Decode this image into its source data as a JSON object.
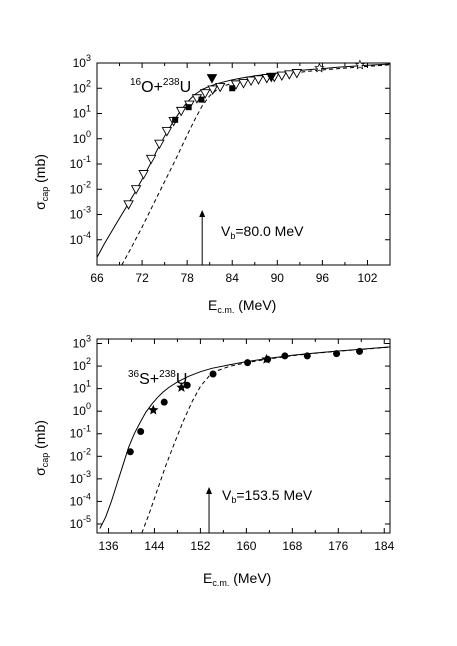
{
  "chart_data": [
    {
      "type": "scatter",
      "title": "",
      "reaction": {
        "pre1": "16",
        "el1": "O+",
        "pre2": "238",
        "el2": "U"
      },
      "xlabel": {
        "main": "E",
        "sub": "c.m.",
        "unit": "(MeV)"
      },
      "ylabel": {
        "main": "σ",
        "sub": "cap",
        "unit": "(mb)"
      },
      "xlim": [
        66,
        105
      ],
      "ylim_log10": [
        -5,
        3
      ],
      "log_y": true,
      "x_ticks": [
        "66",
        "72",
        "78",
        "84",
        "90",
        "96",
        "102"
      ],
      "y_tick_exponents": [
        "3",
        "2",
        "1",
        "0",
        "-1",
        "-2",
        "-3",
        "-4"
      ],
      "barrier": {
        "label_main": "V",
        "label_sub": "b",
        "label_value": "=80.0 MeV",
        "x": 80.0
      },
      "series": [
        {
          "marker": "triangle-down-open",
          "x": [
            70.2,
            71.2,
            72.2,
            73.2,
            74.3,
            75.3,
            76.2,
            77.2,
            78.3,
            79.3,
            80.4,
            81.4,
            82.4,
            84.5,
            85.5,
            86.5,
            87.5,
            88.6,
            89.6,
            90.6,
            91.6,
            92.6
          ],
          "y": [
            -2.6,
            -2.0,
            -1.4,
            -0.8,
            -0.2,
            0.3,
            0.7,
            1.1,
            1.35,
            1.6,
            1.8,
            1.95,
            2.05,
            2.15,
            2.2,
            2.3,
            2.35,
            2.4,
            2.45,
            2.5,
            2.55,
            2.6
          ]
        },
        {
          "marker": "square-filled",
          "x": [
            76.4,
            78.2,
            79.9,
            84.0
          ],
          "y": [
            0.75,
            1.25,
            1.55,
            2.0
          ]
        },
        {
          "marker": "triangle-down-filled",
          "x": [
            81.3,
            89.2
          ],
          "y": [
            2.4,
            2.45
          ]
        },
        {
          "marker": "star-open",
          "x": [
            95.6,
            101.0
          ],
          "y": [
            2.8,
            2.92
          ]
        },
        {
          "name": "",
          "style": "solid",
          "x": [
            66.0,
            67.0,
            68.0,
            69.0,
            70.0,
            71.0,
            72.0,
            73.0,
            74.0,
            75.0,
            76.0,
            77.0,
            78.0,
            79.0,
            80.0,
            81.0,
            82.0,
            83.0,
            84.0,
            85.0,
            86.0,
            87.0,
            88.0,
            90.0,
            92.0,
            94.0,
            96.0,
            98.0,
            100.0,
            102.0,
            105.0
          ],
          "y": [
            -4.7,
            -4.15,
            -3.65,
            -3.15,
            -2.65,
            -2.15,
            -1.6,
            -1.05,
            -0.45,
            0.1,
            0.6,
            1.05,
            1.45,
            1.75,
            1.95,
            2.08,
            2.18,
            2.26,
            2.33,
            2.39,
            2.44,
            2.49,
            2.53,
            2.6,
            2.67,
            2.73,
            2.78,
            2.83,
            2.87,
            2.91,
            2.96
          ]
        },
        {
          "name": "",
          "style": "dashed",
          "x": [
            69.3,
            70.5,
            72.0,
            73.5,
            75.0,
            76.5,
            78.0,
            79.0,
            80.0,
            81.0,
            82.0,
            83.0,
            84.0,
            86.0,
            88.0,
            90.0,
            92.0,
            95.0,
            100.0,
            105.0
          ],
          "y": [
            -5.0,
            -4.35,
            -3.5,
            -2.6,
            -1.7,
            -0.8,
            0.15,
            0.75,
            1.3,
            1.7,
            1.95,
            2.1,
            2.2,
            2.35,
            2.45,
            2.53,
            2.6,
            2.7,
            2.82,
            2.93
          ]
        }
      ]
    },
    {
      "type": "scatter",
      "title": "",
      "reaction": {
        "pre1": "36",
        "el1": "S+",
        "pre2": "238",
        "el2": "U"
      },
      "xlabel": {
        "main": "E",
        "sub": "c.m.",
        "unit": "(MeV)"
      },
      "ylabel": {
        "main": "σ",
        "sub": "cap",
        "unit": "(mb)"
      },
      "xlim": [
        134,
        185
      ],
      "ylim_log10": [
        -5.4,
        3.2
      ],
      "log_y": true,
      "x_ticks": [
        "136",
        "144",
        "152",
        "160",
        "168",
        "176",
        "184"
      ],
      "y_tick_exponents": [
        "3",
        "2",
        "1",
        "0",
        "-1",
        "-2",
        "-3",
        "-4",
        "-5"
      ],
      "barrier": {
        "label_main": "V",
        "label_sub": "b",
        "label_value": "=153.5 MeV",
        "x": 153.5
      },
      "series": [
        {
          "marker": "circle-filled",
          "x": [
            139.8,
            141.6,
            145.7,
            149.7,
            154.2,
            160.2,
            163.7,
            166.7,
            170.6,
            175.7,
            179.7
          ],
          "y": [
            -1.8,
            -0.9,
            0.4,
            1.15,
            1.65,
            2.15,
            2.3,
            2.45,
            2.45,
            2.55,
            2.65
          ]
        },
        {
          "marker": "star-filled",
          "x": [
            143.8,
            148.7,
            163.5
          ],
          "y": [
            0.05,
            1.05,
            2.3
          ]
        },
        {
          "name": "",
          "style": "solid",
          "x": [
            134.5,
            135.5,
            136.5,
            137.5,
            138.5,
            139.5,
            140.5,
            141.5,
            142.5,
            143.5,
            144.5,
            145.5,
            146.5,
            148.0,
            150.0,
            152.0,
            154.0,
            157.0,
            160.0,
            164.0,
            168.0,
            172.0,
            176.0,
            180.0,
            185.0
          ],
          "y": [
            -5.2,
            -4.7,
            -4.0,
            -3.2,
            -2.4,
            -1.6,
            -1.0,
            -0.5,
            -0.05,
            0.3,
            0.6,
            0.85,
            1.05,
            1.3,
            1.55,
            1.75,
            1.9,
            2.05,
            2.2,
            2.35,
            2.48,
            2.58,
            2.67,
            2.75,
            2.85
          ]
        },
        {
          "name": "",
          "style": "dashed",
          "x": [
            141.8,
            143.0,
            144.5,
            146.0,
            147.5,
            149.0,
            150.5,
            152.0,
            153.5,
            155.0,
            157.0,
            160.0,
            164.0,
            168.0,
            172.0,
            176.0,
            180.0,
            185.0
          ],
          "y": [
            -5.4,
            -4.6,
            -3.5,
            -2.4,
            -1.4,
            -0.45,
            0.4,
            1.1,
            1.55,
            1.8,
            1.98,
            2.15,
            2.32,
            2.46,
            2.57,
            2.66,
            2.74,
            2.84
          ]
        }
      ]
    }
  ]
}
